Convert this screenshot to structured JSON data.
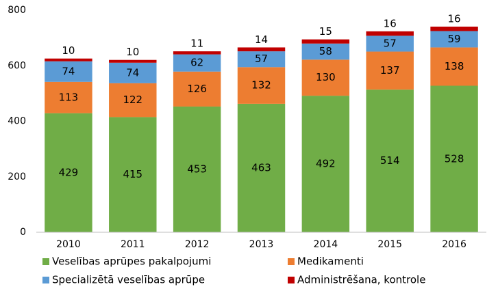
{
  "chart_data": {
    "type": "stacked_bar",
    "categories": [
      "2010",
      "2011",
      "2012",
      "2013",
      "2014",
      "2015",
      "2016"
    ],
    "series": [
      {
        "name": "Veselības aprūpes pakalpojumi",
        "color": "#70ad47",
        "values": [
          429,
          415,
          453,
          463,
          492,
          514,
          528
        ]
      },
      {
        "name": "Medikamenti",
        "color": "#ed7d31",
        "values": [
          113,
          122,
          126,
          132,
          130,
          137,
          138
        ]
      },
      {
        "name": "Specializētā veselības aprūpe",
        "color": "#5b9bd5",
        "values": [
          74,
          74,
          62,
          57,
          58,
          57,
          59
        ]
      },
      {
        "name": "Administrēšana, kontrole",
        "color": "#c00000",
        "values": [
          10,
          10,
          11,
          14,
          15,
          16,
          16
        ]
      }
    ],
    "ylim": [
      0,
      800
    ],
    "yticks": [
      0,
      200,
      400,
      600,
      800
    ],
    "grid": false,
    "legend": "bottom"
  }
}
